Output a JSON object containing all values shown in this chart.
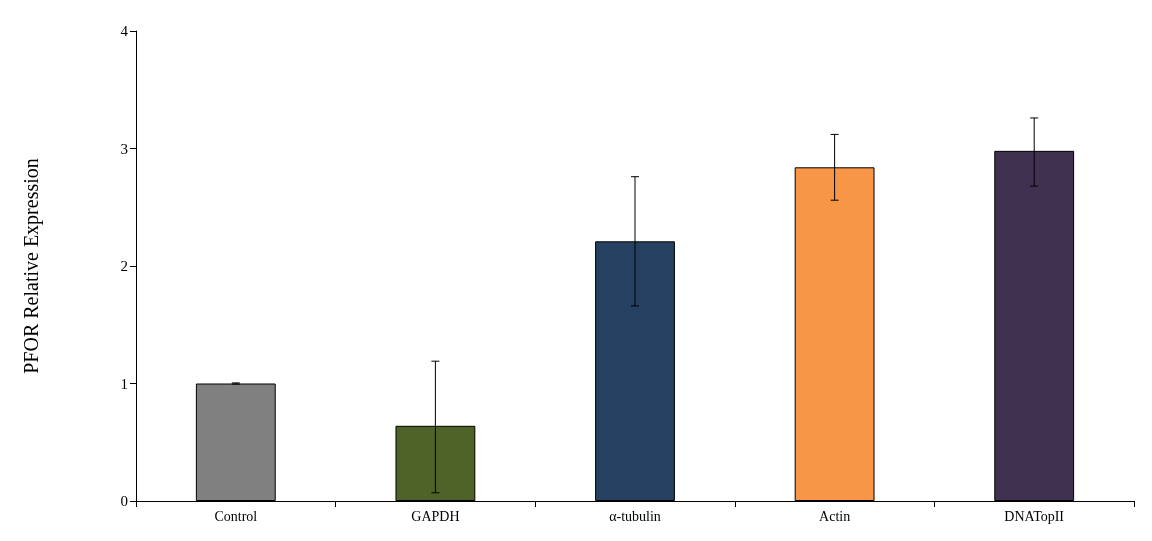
{
  "chart_data": {
    "type": "bar",
    "ylabel": "PFOR Relative Expression",
    "categories": [
      "Control",
      "GAPDH",
      "α-tubulin",
      "Actin",
      "DNATopII"
    ],
    "values": [
      1.0,
      0.64,
      2.21,
      2.84,
      2.98
    ],
    "colors": [
      "#808080",
      "#4f6228",
      "#254061",
      "#f79646",
      "#403151"
    ],
    "errors": [
      [
        0.995,
        1.005
      ],
      [
        0.07,
        1.19
      ],
      [
        1.66,
        2.76
      ],
      [
        2.56,
        3.12
      ],
      [
        2.68,
        3.26
      ]
    ],
    "ylim": [
      0,
      4
    ],
    "yticks": [
      0,
      1,
      2,
      3,
      4
    ],
    "grid": false
  }
}
